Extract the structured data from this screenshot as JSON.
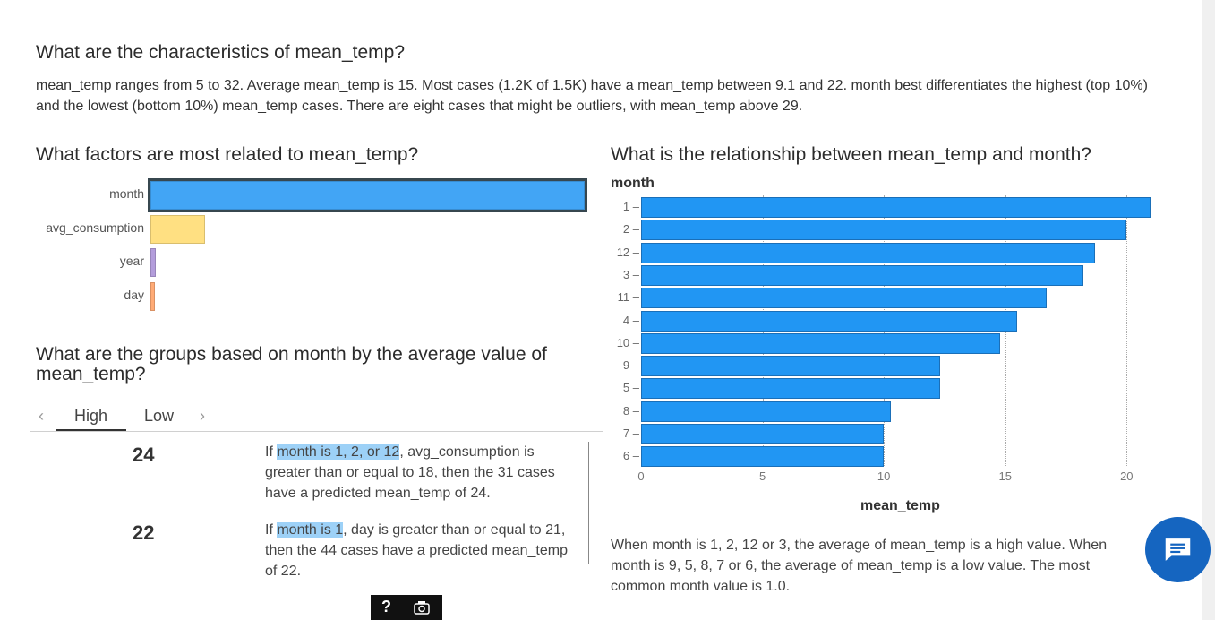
{
  "header": {
    "title": "What are the characteristics of mean_temp?",
    "summary": "mean_temp ranges from 5 to 32. Average mean_temp is 15. Most cases (1.2K of 1.5K) have a mean_temp between 9.1 and 22. month best differentiates the highest (top 10%) and the lowest (bottom 10%) mean_temp cases. There are eight cases that might be outliers, with mean_temp above 29."
  },
  "factors": {
    "title": "What are factors are most related to mean_temp?",
    "items": [
      {
        "label": "month",
        "importance": 1.0,
        "color": "#42a5f5"
      },
      {
        "label": "avg_consumption",
        "importance": 0.125,
        "color": "#ffe082"
      },
      {
        "label": "year",
        "importance": 0.012,
        "color": "#b39ddb"
      },
      {
        "label": "day",
        "importance": 0.01,
        "color": "#ffab76"
      }
    ]
  },
  "groups": {
    "title": "What are the groups based on month by the average value of mean_temp?",
    "tabs": [
      "High",
      "Low"
    ],
    "active_tab": "High",
    "prev_icon": "chevron-left-icon",
    "next_icon": "chevron-right-icon",
    "items": [
      {
        "value": "24",
        "pre": "If ",
        "highlight": "month is 1, 2, or 12",
        "post": ", avg_consumption is greater than or equal to 18, then the 31 cases have a predicted mean_temp of 24."
      },
      {
        "value": "22",
        "pre": "If ",
        "highlight": "month is 1",
        "post": ", day is greater than or equal to 21, then the 44 cases have a predicted mean_temp of 22."
      }
    ]
  },
  "relationship": {
    "title": "What is the relationship between mean_temp and month?",
    "explanation": "When month is 1, 2, 12 or 3, the average of mean_temp is a high value. When month is 9, 5, 8, 7 or 6, the average of mean_temp is a low value. The most common month value is 1.0."
  },
  "chart_data": {
    "type": "bar",
    "orientation": "horizontal",
    "ylabel": "month",
    "xlabel": "mean_temp",
    "categories": [
      "1",
      "2",
      "12",
      "3",
      "11",
      "4",
      "10",
      "9",
      "5",
      "8",
      "7",
      "6"
    ],
    "values": [
      21.0,
      20.0,
      18.7,
      18.2,
      16.7,
      15.5,
      14.8,
      12.3,
      12.3,
      10.3,
      10.0,
      10.0
    ],
    "xlim": [
      0,
      21.5
    ],
    "xticks": [
      0,
      5,
      10,
      15,
      20
    ],
    "grid": "vertical-dotted",
    "bar_color": "#2196f3"
  },
  "chat_button": {
    "icon": "chat-icon",
    "color": "#1565c0"
  },
  "toolbar": {
    "help_label": "?",
    "capture_icon": "camera-icon"
  }
}
